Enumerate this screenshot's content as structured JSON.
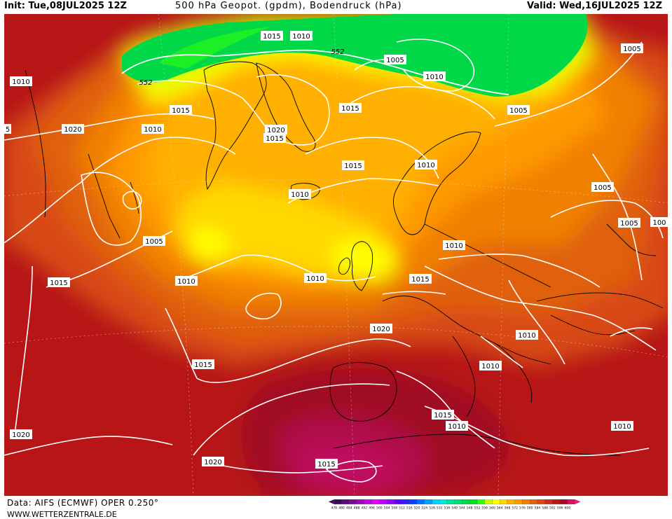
{
  "header": {
    "init": "Init: Tue,08JUL2025 12Z",
    "title": "500 hPa Geopot. (gpdm), Bodendruck (hPa)",
    "valid": "Valid: Wed,16JUL2025 12Z"
  },
  "footer": {
    "data_source": "Data: AIFS (ECMWF) OPER 0.250°",
    "website": "WWW.WETTERZENTRALE.DE"
  },
  "legend": {
    "ticks": [
      "476",
      "480",
      "484",
      "488",
      "492",
      "496",
      "500",
      "504",
      "508",
      "512",
      "516",
      "520",
      "524",
      "528",
      "532",
      "536",
      "540",
      "544",
      "548",
      "552",
      "556",
      "560",
      "564",
      "568",
      "572",
      "576",
      "580",
      "584",
      "588",
      "592",
      "596",
      "600"
    ],
    "colors": [
      "#3a0a5a",
      "#5a0a7a",
      "#7a0a9a",
      "#9a0aba",
      "#ba0ada",
      "#da0af5",
      "#c000ff",
      "#9000ff",
      "#6000ff",
      "#3020ff",
      "#0040ff",
      "#0070ff",
      "#00a0ff",
      "#00d0ff",
      "#00e8d8",
      "#00e0a0",
      "#00dc70",
      "#00d848",
      "#00e020",
      "#30ff10",
      "#c8ff00",
      "#ffff00",
      "#ffd800",
      "#ffb000",
      "#ff9a00",
      "#f08000",
      "#e06010",
      "#d84818",
      "#c83018",
      "#b81818",
      "#a00c20",
      "#d01060"
    ]
  },
  "map": {
    "highlighted_contour": "552",
    "isobar_labels": {
      "l1010_a": "1010",
      "l1015_a": "1015",
      "l1010_b": "1010",
      "l1005_a": "1005",
      "l1010_c": "1010",
      "l1005_b": "1005",
      "l1010_d": "1010",
      "l1015_b": "1015",
      "l1020_a": "1020",
      "l1015_c": "1015",
      "l1020_b": "1020",
      "l1015_d": "1015",
      "l1010_e": "1010",
      "l1015_e": "1015",
      "l1005_c": "1005",
      "l1010_f": "1010",
      "l1005_d": "1005",
      "l1010_g": "1010",
      "l1015_f": "1015",
      "l1010_h": "1010",
      "l1010_i": "1010",
      "l1020_c": "1020",
      "l1005_e": "1005",
      "l100_trunc": "100",
      "l1010_j": "1010",
      "l1015_g": "1015",
      "l1010_k": "1010",
      "l1010_l": "1010",
      "l1015_h": "1015",
      "l1020_d": "1020",
      "l1015_i": "1015",
      "l1010_m": "1010",
      "l1005_f": "1005",
      "l1020_e": "1020",
      "l1015_j": "1015",
      "l5_trunc": "5"
    },
    "contour_labels": {
      "c552_a": "552",
      "c552_b": "552"
    }
  }
}
